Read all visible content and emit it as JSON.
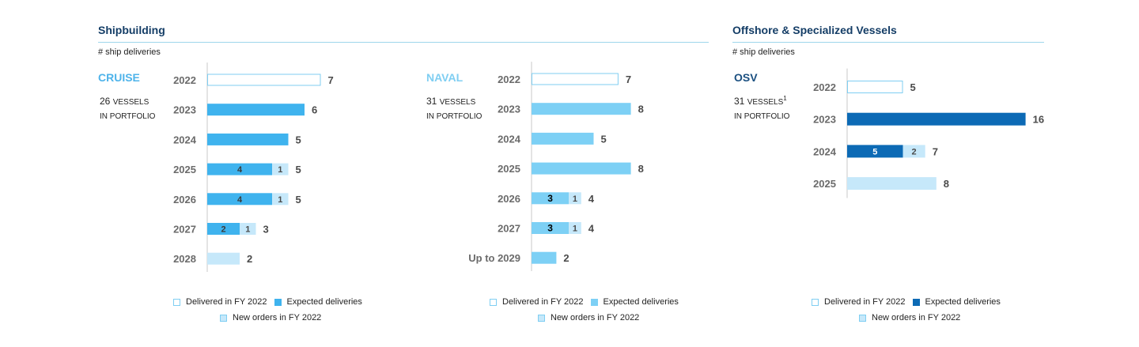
{
  "sections": {
    "shipbuilding": {
      "title": "Shipbuilding",
      "subtitle": "# ship deliveries"
    },
    "offshore": {
      "title": "Offshore & Specialized Vessels",
      "subtitle": "# ship deliveries"
    }
  },
  "panels": {
    "cruise": {
      "title": "CRUISE",
      "count": "26",
      "vessels_word": "VESSELS",
      "sup": "",
      "portfolio_text": "IN PORTFOLIO"
    },
    "naval": {
      "title": "NAVAL",
      "count": "31",
      "vessels_word": "VESSELS",
      "sup": "",
      "portfolio_text": "IN PORTFOLIO"
    },
    "osv": {
      "title": "OSV",
      "count": "31",
      "vessels_word": "VESSELS",
      "sup": "1",
      "portfolio_text": "IN PORTFOLIO"
    }
  },
  "colors": {
    "cruise_title": "#4eb3ea",
    "naval_title": "#7fcef2",
    "osv_title": "#1a4f80",
    "delivered_border": "#7fcef2",
    "cruise_expected": "#3fb3ee",
    "naval_expected": "#7dd0f5",
    "osv_expected": "#0c6ab5",
    "new_orders": "#c6e8fa",
    "axis": "#c8c8c8",
    "category_text": "#6b6b6b",
    "total_text": "#4a4a4a"
  },
  "legends": {
    "cruise": {
      "delivered": "Delivered in FY 2022",
      "expected": "Expected deliveries",
      "new_orders": "New orders in FY 2022"
    },
    "naval": {
      "delivered": "Delivered in FY 2022",
      "expected": "Expected deliveries",
      "new_orders": "New orders in FY 2022"
    },
    "osv": {
      "delivered": "Delivered in FY 2022",
      "expected": "Expected deliveries",
      "new_orders": "New orders in FY 2022"
    }
  },
  "chart_data": [
    {
      "type": "bar",
      "orientation": "horizontal",
      "stacked": true,
      "title": "CRUISE",
      "categories": [
        "2022",
        "2023",
        "2024",
        "2025",
        "2026",
        "2027",
        "2028"
      ],
      "series": [
        {
          "name": "Delivered in FY 2022",
          "values": [
            7,
            0,
            0,
            0,
            0,
            0,
            0
          ]
        },
        {
          "name": "Expected deliveries",
          "values": [
            0,
            6,
            5,
            4,
            4,
            2,
            0
          ]
        },
        {
          "name": "New orders in FY 2022",
          "values": [
            0,
            0,
            0,
            1,
            1,
            1,
            2
          ]
        }
      ],
      "totals": [
        7,
        6,
        5,
        5,
        5,
        3,
        2
      ],
      "xlim": [
        0,
        16
      ]
    },
    {
      "type": "bar",
      "orientation": "horizontal",
      "stacked": true,
      "title": "NAVAL",
      "categories": [
        "2022",
        "2023",
        "2024",
        "2025",
        "2026",
        "2027",
        "Up to 2029"
      ],
      "series": [
        {
          "name": "Delivered in FY 2022",
          "values": [
            7,
            0,
            0,
            0,
            0,
            0,
            0
          ]
        },
        {
          "name": "Expected deliveries",
          "values": [
            0,
            8,
            5,
            8,
            3,
            3,
            2
          ]
        },
        {
          "name": "New orders in FY 2022",
          "values": [
            0,
            0,
            0,
            0,
            1,
            1,
            0
          ]
        }
      ],
      "totals": [
        7,
        8,
        5,
        8,
        4,
        4,
        2
      ],
      "xlim": [
        0,
        16
      ]
    },
    {
      "type": "bar",
      "orientation": "horizontal",
      "stacked": true,
      "title": "OSV",
      "categories": [
        "2022",
        "2023",
        "2024",
        "2025"
      ],
      "series": [
        {
          "name": "Delivered in FY 2022",
          "values": [
            5,
            0,
            0,
            0
          ]
        },
        {
          "name": "Expected deliveries",
          "values": [
            0,
            16,
            5,
            0
          ]
        },
        {
          "name": "New orders in FY 2022",
          "values": [
            0,
            0,
            2,
            8
          ]
        }
      ],
      "totals": [
        5,
        16,
        7,
        8
      ],
      "xlim": [
        0,
        16
      ]
    }
  ]
}
